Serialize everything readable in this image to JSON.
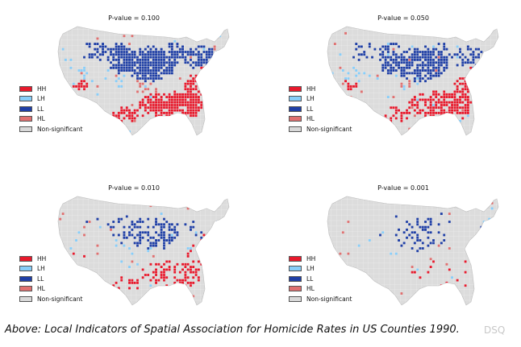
{
  "panels": [
    {
      "title": "P-value = 0.100",
      "significance_level": "high"
    },
    {
      "title": "P-value = 0.050",
      "significance_level": "medium"
    },
    {
      "title": "P-value = 0.010",
      "significance_level": "low"
    },
    {
      "title": "P-value = 0.001",
      "significance_level": "very-low"
    }
  ],
  "legend": [
    {
      "label": "HH",
      "color": "#e8192c"
    },
    {
      "label": "LH",
      "color": "#87cefa"
    },
    {
      "label": "LL",
      "color": "#1f3fa6"
    },
    {
      "label": "HL",
      "color": "#e07070"
    },
    {
      "label": "Non-significant",
      "color": "#d9d9d9"
    }
  ],
  "caption": "Above: Local Indicators of Spatial Association for Homicide Rates in US Counties 1990.",
  "watermark": "DSQ"
}
